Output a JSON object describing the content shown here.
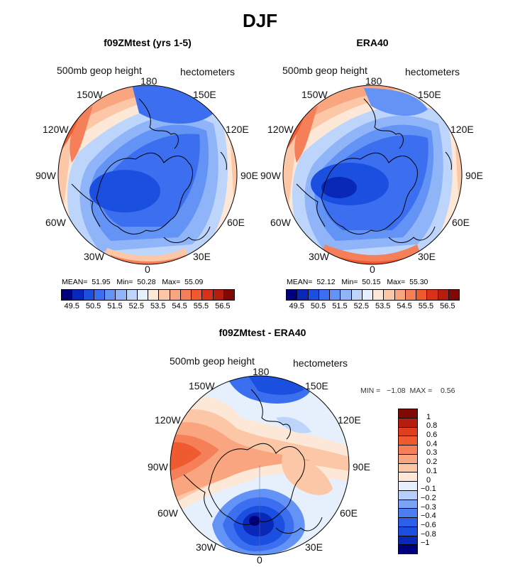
{
  "title": "DJF",
  "panels": [
    {
      "title": "f09ZMtest (yrs 1-5)",
      "var_label": "500mb geop height",
      "units": "hectometers",
      "stats": {
        "mean_label": "MEAN=",
        "mean": "51.95",
        "min_label": "Min=",
        "min": "50.28",
        "max_label": "Max=",
        "max": "55.09"
      }
    },
    {
      "title": "ERA40",
      "var_label": "500mb geop height",
      "units": "hectometers",
      "stats": {
        "mean_label": "MEAN=",
        "mean": "52.12",
        "min_label": "Min=",
        "min": "50.15",
        "max_label": "Max=",
        "max": "55.30"
      }
    },
    {
      "title": "f09ZMtest - ERA40",
      "var_label": "500mb geop height",
      "units": "hectometers",
      "stats": {
        "min_label": "MIN =",
        "min": "−1.08",
        "max_label": "MAX =",
        "max": "0.56"
      }
    }
  ],
  "longitude_labels": [
    "180",
    "150E",
    "120E",
    "90E",
    "60E",
    "30E",
    "0",
    "30W",
    "60W",
    "90W",
    "120W",
    "150W"
  ],
  "colorbar_abs": {
    "colors": [
      "#00007f",
      "#0a28b8",
      "#1a4fe0",
      "#3b6ff0",
      "#6393f4",
      "#8fb4f7",
      "#bdd5fb",
      "#e6f0fd",
      "#fde7d6",
      "#fcc7a6",
      "#f9a57f",
      "#f47f58",
      "#ef5a30",
      "#d8331a",
      "#b51e0e",
      "#7f0a05"
    ],
    "tick_labels": [
      "49.5",
      "50.5",
      "51.5",
      "52.5",
      "53.5",
      "54.5",
      "55.5",
      "56.5"
    ]
  },
  "colorbar_diff": {
    "colors": [
      "#00007f",
      "#0a28b8",
      "#1a4fe0",
      "#2d5fea",
      "#4b7ef0",
      "#7aa2f5",
      "#b5cffa",
      "#e6f0fd",
      "#fde7d6",
      "#fcc7a6",
      "#f9a57f",
      "#f47f58",
      "#ef5a30",
      "#e03e1f",
      "#b51e0e",
      "#7f0a05"
    ],
    "tick_labels": [
      "1",
      "0.8",
      "0.6",
      "0.4",
      "0.3",
      "0.2",
      "0.1",
      "0",
      "−0.1",
      "−0.2",
      "−0.3",
      "−0.4",
      "−0.6",
      "−0.8",
      "−1"
    ]
  }
}
